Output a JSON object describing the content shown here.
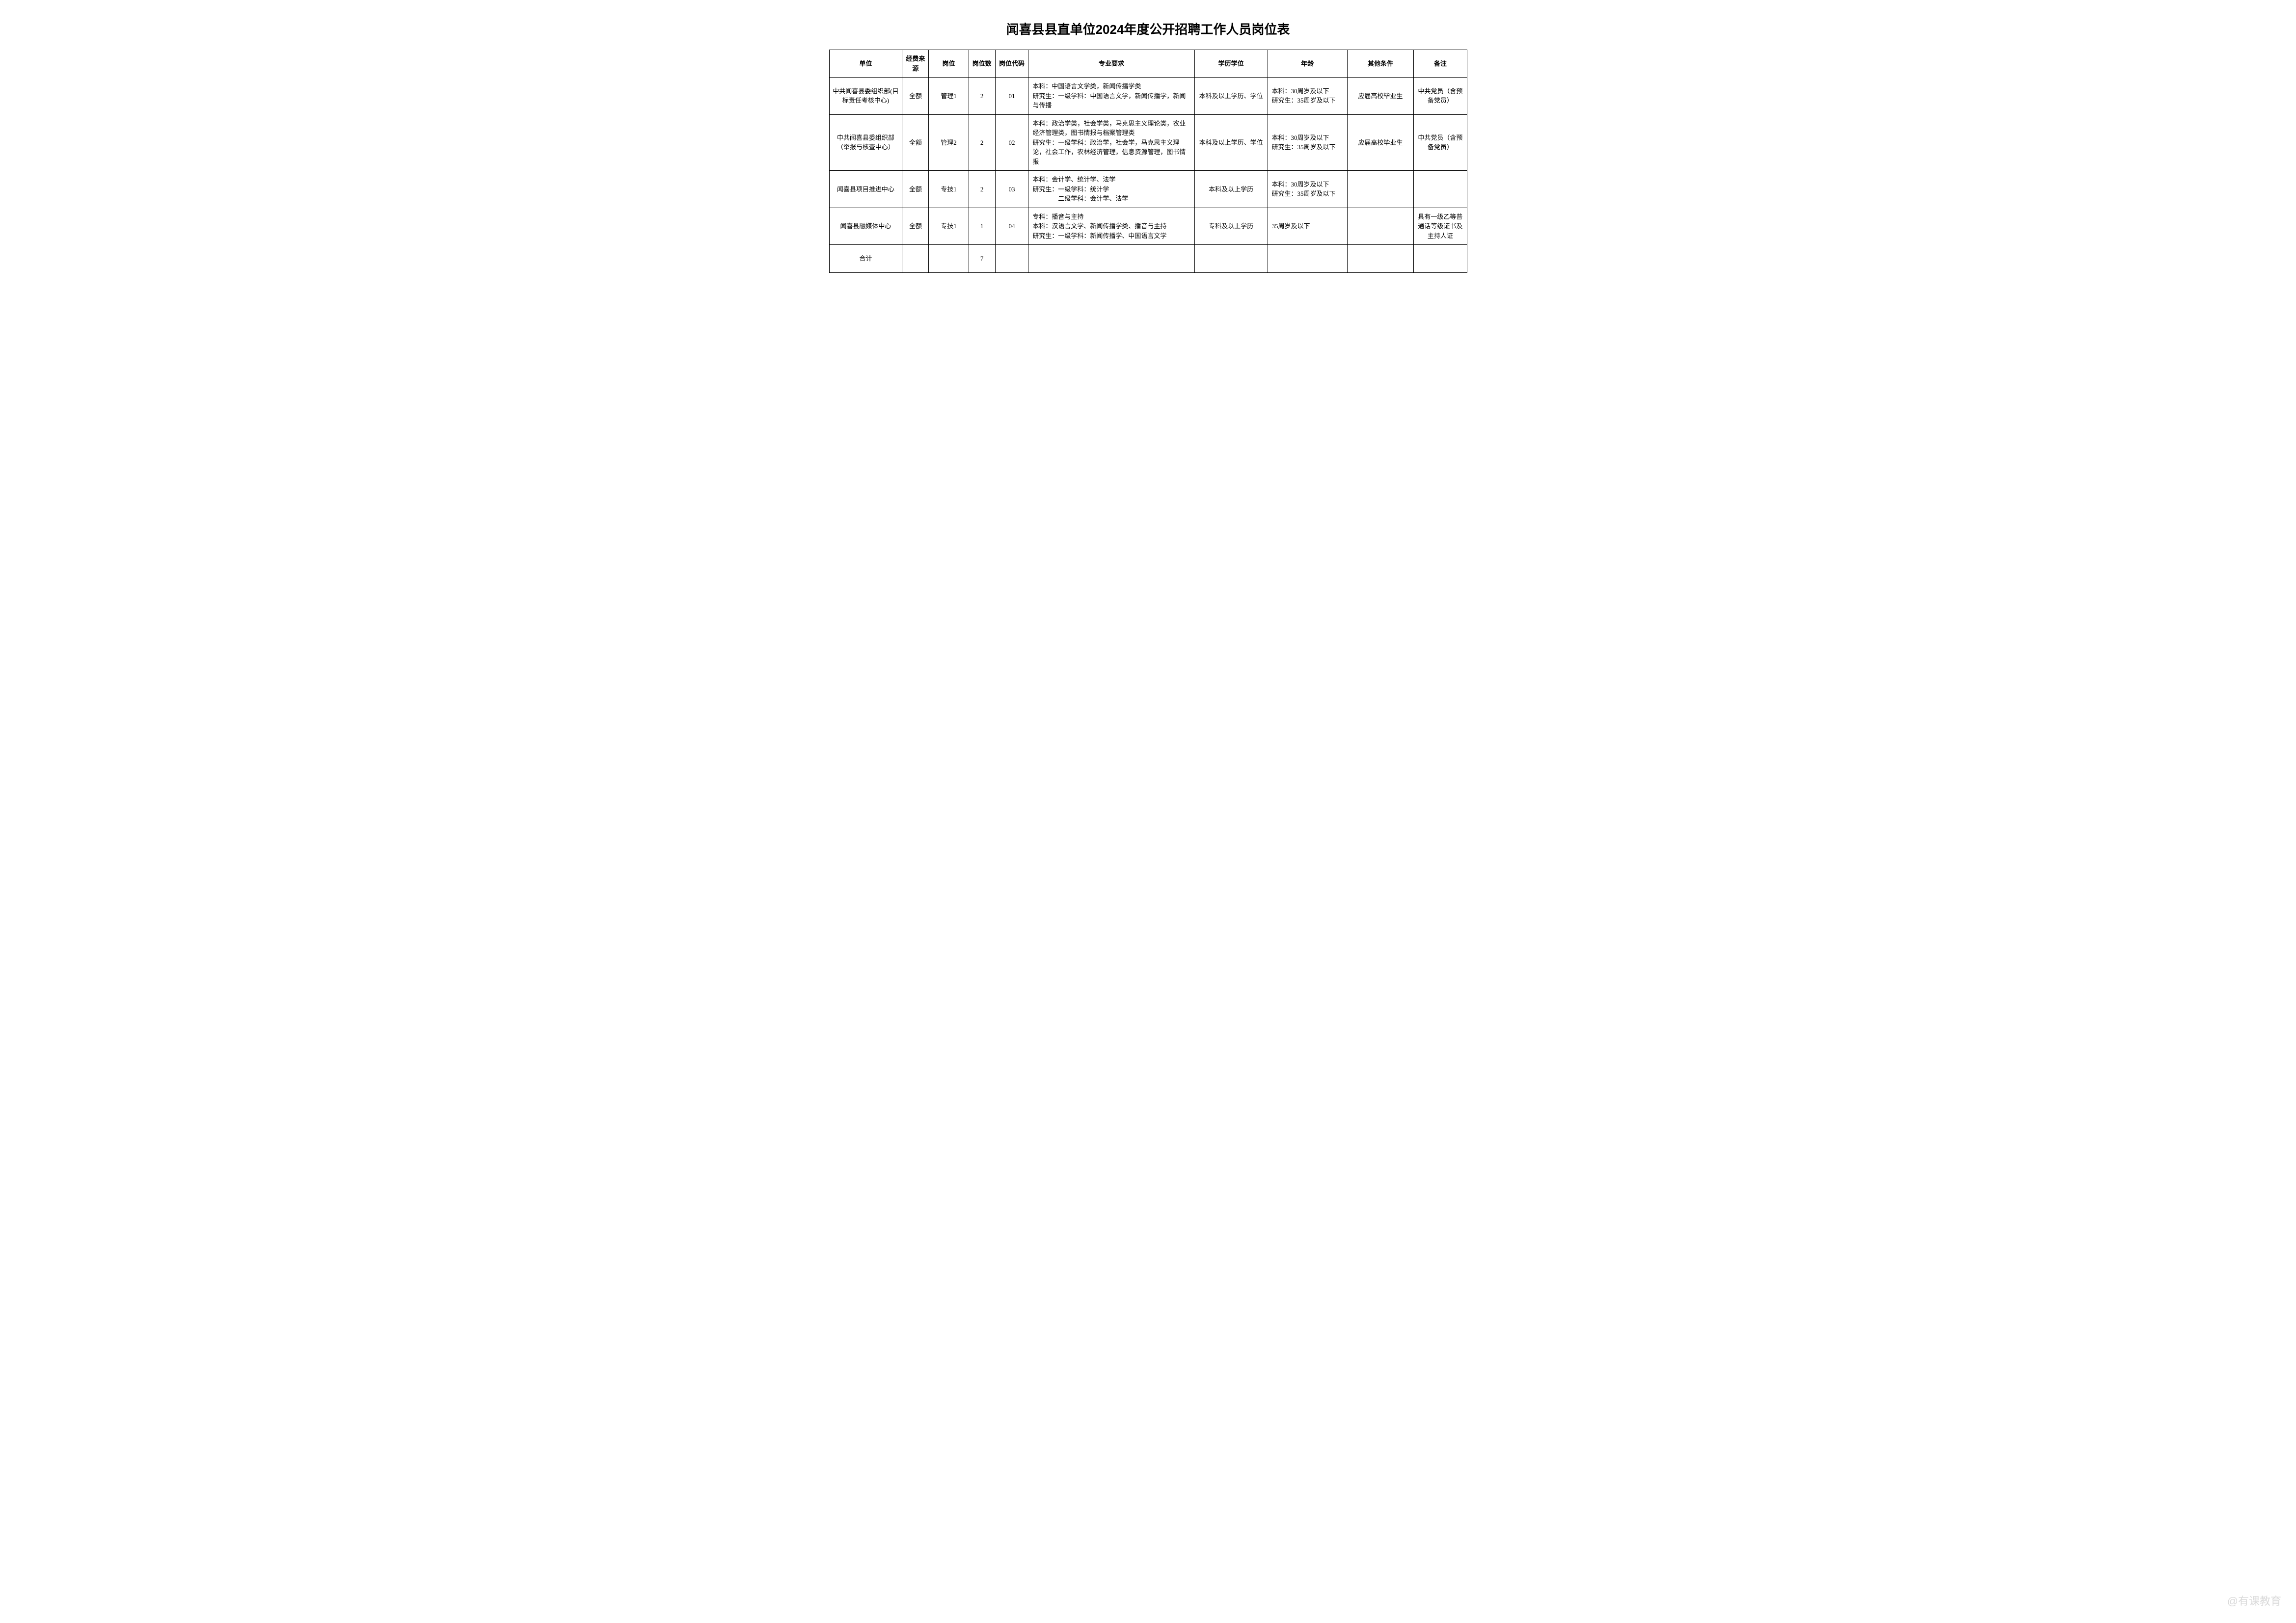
{
  "title": "闻喜县县直单位2024年度公开招聘工作人员岗位表",
  "headers": {
    "unit": "单位",
    "funding": "经费来源",
    "position": "岗位",
    "count": "岗位数",
    "code": "岗位代码",
    "major": "专业要求",
    "education": "学历学位",
    "age": "年龄",
    "other": "其他条件",
    "remark": "备注"
  },
  "rows": [
    {
      "unit": "中共闻喜县委组织部(目标责任考核中心)",
      "funding": "全额",
      "position": "管理1",
      "count": "2",
      "code": "01",
      "major": "本科：中国语言文学类，新闻传播学类\n研究生：一级学科：中国语言文学，新闻传播学，新闻与传播",
      "education": "本科及以上学历、学位",
      "age": "本科：30周岁及以下\n研究生：35周岁及以下",
      "other": "应届高校毕业生",
      "remark": "中共党员（含预备党员）"
    },
    {
      "unit": "中共闻喜县委组织部（举报与核查中心）",
      "funding": "全额",
      "position": "管理2",
      "count": "2",
      "code": "02",
      "major": "本科：政治学类，社会学类，马克思主义理论类，农业经济管理类，图书情报与档案管理类\n研究生：一级学科：政治学，社会学，马克思主义理论，社会工作，农林经济管理，信息资源管理，图书情报",
      "education": "本科及以上学历、学位",
      "age": "本科：30周岁及以下\n研究生：35周岁及以下",
      "other": "应届高校毕业生",
      "remark": "中共党员（含预备党员）"
    },
    {
      "unit": "闻喜县项目推进中心",
      "funding": "全额",
      "position": "专技1",
      "count": "2",
      "code": "03",
      "major": "本科：会计学、统计学、法学\n研究生：一级学科：统计学\n　　　　二级学科：会计学、法学",
      "education": "本科及以上学历",
      "age": "本科：30周岁及以下\n研究生：35周岁及以下",
      "other": "",
      "remark": ""
    },
    {
      "unit": "闻喜县融媒体中心",
      "funding": "全额",
      "position": "专技1",
      "count": "1",
      "code": "04",
      "major": "专科：播音与主持\n本科：汉语言文学、新闻传播学类、播音与主持\n研究生：一级学科：新闻传播学、中国语言文学",
      "education": "专科及以上学历",
      "age": "35周岁及以下",
      "other": "",
      "remark": "具有一级乙等普通话等级证书及主持人证"
    }
  ],
  "total": {
    "label": "合计",
    "count": "7"
  },
  "watermark": "@有课教育"
}
